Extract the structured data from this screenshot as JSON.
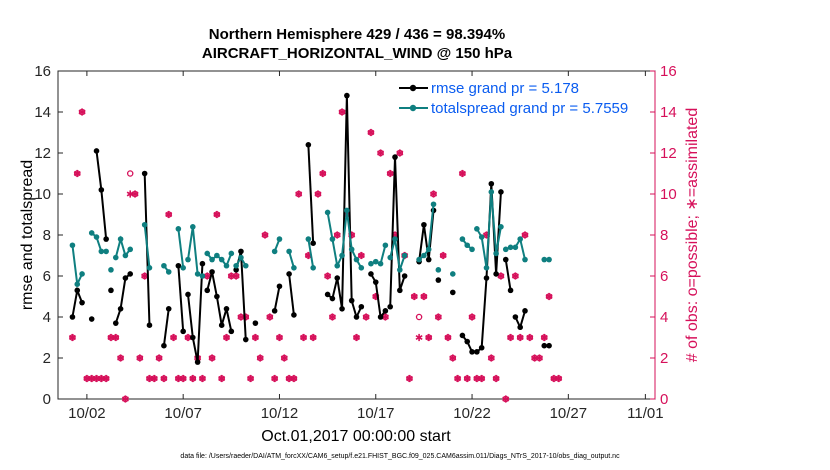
{
  "chart_data": {
    "type": "line",
    "title": "Northern Hemisphere 429 / 436 = 98.394%",
    "subtitle": "AIRCRAFT_HORIZONTAL_WIND @ 150 hPa",
    "xlabel": "Oct.01,2017 00:00:00 start",
    "ylabel_left": "rmse and totalspread",
    "ylabel_right": "# of obs: o=possible; ∗=assimilated",
    "xlim": [
      0.5,
      31.5
    ],
    "ylim_left": [
      0,
      16
    ],
    "ylim_right": [
      0,
      16
    ],
    "x_ticks": [
      {
        "x": 2,
        "label": "10/02"
      },
      {
        "x": 7,
        "label": "10/07"
      },
      {
        "x": 12,
        "label": "10/12"
      },
      {
        "x": 17,
        "label": "10/17"
      },
      {
        "x": 22,
        "label": "10/22"
      },
      {
        "x": 27,
        "label": "10/27"
      },
      {
        "x": 31,
        "label": "11/01"
      }
    ],
    "y_ticks": [
      0,
      2,
      4,
      6,
      8,
      10,
      12,
      14,
      16
    ],
    "colors": {
      "rmse": "#000000",
      "spread": "#0f7f80",
      "obs": "#d6105a",
      "legend_text": "#0a5cf0"
    },
    "series": [
      {
        "name": "rmse grand pr = 5.178",
        "color": "#000000",
        "segments": [
          {
            "x": [
              1.25,
              1.5,
              1.75
            ],
            "y": [
              4.0,
              5.3,
              4.7
            ]
          },
          {
            "x": [
              2.25
            ],
            "y": [
              3.9
            ]
          },
          {
            "x": [
              2.5,
              2.75,
              3.0
            ],
            "y": [
              12.1,
              10.2,
              7.8
            ]
          },
          {
            "x": [
              3.25
            ],
            "y": [
              5.3
            ]
          },
          {
            "x": [
              3.5,
              3.75,
              4.0,
              4.25
            ],
            "y": [
              3.7,
              4.4,
              5.9,
              6.1
            ]
          },
          {
            "x": [
              5.0,
              5.25
            ],
            "y": [
              11.0,
              3.6
            ]
          },
          {
            "x": [
              6.0,
              6.25
            ],
            "y": [
              2.6,
              4.4
            ]
          },
          {
            "x": [
              6.75,
              7.0
            ],
            "y": [
              6.5,
              3.3
            ]
          },
          {
            "x": [
              7.25,
              7.5,
              7.75,
              8.0
            ],
            "y": [
              5.1,
              3.0,
              1.8,
              6.6
            ]
          },
          {
            "x": [
              8.25,
              8.5,
              8.75,
              9.0,
              9.25,
              9.5
            ],
            "y": [
              5.3,
              6.2,
              5.0,
              3.6,
              4.4,
              3.3
            ]
          },
          {
            "x": [
              9.75,
              10.0,
              10.25
            ],
            "y": [
              6.3,
              7.2,
              2.9
            ]
          },
          {
            "x": [
              10.75
            ],
            "y": [
              3.7
            ]
          },
          {
            "x": [
              11.75,
              12.0
            ],
            "y": [
              4.3,
              5.5
            ]
          },
          {
            "x": [
              12.5,
              12.75
            ],
            "y": [
              6.1,
              4.1
            ]
          },
          {
            "x": [
              13.5,
              13.75
            ],
            "y": [
              12.4,
              7.6
            ]
          },
          {
            "x": [
              14.5,
              14.75,
              15.0,
              15.25,
              15.5,
              15.75,
              16.0,
              16.25
            ],
            "y": [
              5.1,
              4.9,
              5.9,
              4.4,
              14.8,
              4.8,
              4.0,
              4.5
            ]
          },
          {
            "x": [
              16.75,
              17.0,
              17.25,
              17.5
            ],
            "y": [
              6.1,
              5.7,
              4.0,
              4.3
            ]
          },
          {
            "x": [
              17.75,
              18.0,
              18.25,
              18.5
            ],
            "y": [
              4.5,
              11.8,
              5.3,
              6.0
            ]
          },
          {
            "x": [
              19.25,
              19.5,
              19.75,
              20.0
            ],
            "y": [
              6.7,
              8.5,
              6.8,
              9.2
            ]
          },
          {
            "x": [
              20.25
            ],
            "y": [
              5.8
            ]
          },
          {
            "x": [
              21.0
            ],
            "y": [
              5.2
            ]
          },
          {
            "x": [
              21.5,
              21.75,
              22.0
            ],
            "y": [
              3.1,
              2.8,
              2.3
            ]
          },
          {
            "x": [
              22.25,
              22.5,
              22.75,
              23.0,
              23.25,
              23.5
            ],
            "y": [
              2.3,
              2.5,
              5.9,
              10.5,
              6.1,
              10.1
            ]
          },
          {
            "x": [
              23.75,
              24.0
            ],
            "y": [
              6.8,
              5.3
            ]
          },
          {
            "x": [
              24.25,
              24.5,
              24.75
            ],
            "y": [
              4.0,
              3.5,
              4.3
            ]
          },
          {
            "x": [
              25.75,
              26.0
            ],
            "y": [
              2.6,
              2.6
            ]
          }
        ]
      },
      {
        "name": "totalspread grand pr = 5.7559",
        "color": "#0f7f80",
        "segments": [
          {
            "x": [
              1.25,
              1.5,
              1.75
            ],
            "y": [
              7.5,
              5.6,
              6.1
            ]
          },
          {
            "x": [
              2.25,
              2.5,
              2.75,
              3.0
            ],
            "y": [
              8.1,
              7.9,
              7.2,
              7.2
            ]
          },
          {
            "x": [
              3.25
            ],
            "y": [
              6.3
            ]
          },
          {
            "x": [
              3.5,
              3.75,
              4.0,
              4.25
            ],
            "y": [
              6.9,
              7.8,
              7.0,
              7.3
            ]
          },
          {
            "x": [
              5.0,
              5.25
            ],
            "y": [
              8.5,
              6.4
            ]
          },
          {
            "x": [
              6.0,
              6.25
            ],
            "y": [
              6.5,
              6.2
            ]
          },
          {
            "x": [
              6.75,
              7.0
            ],
            "y": [
              8.3,
              6.4
            ]
          },
          {
            "x": [
              7.25,
              7.5,
              7.75,
              8.0
            ],
            "y": [
              6.8,
              8.4,
              6.1,
              6.0
            ]
          },
          {
            "x": [
              8.25,
              8.5,
              8.75,
              9.0,
              9.25,
              9.5
            ],
            "y": [
              7.1,
              6.8,
              7.0,
              6.8,
              6.5,
              7.1
            ]
          },
          {
            "x": [
              9.75,
              10.0,
              10.25
            ],
            "y": [
              6.5,
              6.9,
              6.5
            ]
          },
          {
            "x": [
              11.75,
              12.0
            ],
            "y": [
              7.2,
              7.8
            ]
          },
          {
            "x": [
              12.5,
              12.75
            ],
            "y": [
              7.2,
              6.4
            ]
          },
          {
            "x": [
              13.5,
              13.75
            ],
            "y": [
              7.8,
              6.4
            ]
          },
          {
            "x": [
              14.5,
              14.75,
              15.0,
              15.25,
              15.5,
              15.75,
              16.0,
              16.25
            ],
            "y": [
              9.1,
              7.8,
              6.5,
              7.0,
              9.2,
              7.3,
              6.8,
              6.4
            ]
          },
          {
            "x": [
              16.75,
              17.0,
              17.25,
              17.5
            ],
            "y": [
              6.6,
              6.7,
              6.6,
              7.5
            ]
          },
          {
            "x": [
              17.75,
              18.0,
              18.25,
              18.5
            ],
            "y": [
              6.9,
              7.8,
              6.3,
              7.0
            ]
          },
          {
            "x": [
              19.25,
              19.5,
              19.75,
              20.0
            ],
            "y": [
              6.8,
              7.0,
              7.3,
              9.5
            ]
          },
          {
            "x": [
              20.25
            ],
            "y": [
              6.3
            ]
          },
          {
            "x": [
              21.0
            ],
            "y": [
              6.1
            ]
          },
          {
            "x": [
              21.5,
              21.75,
              22.0
            ],
            "y": [
              7.8,
              7.5,
              7.3
            ]
          },
          {
            "x": [
              22.25,
              22.5,
              22.75,
              23.0,
              23.25,
              23.5
            ],
            "y": [
              8.3,
              7.9,
              6.4,
              10.1,
              7.1,
              8.4
            ]
          },
          {
            "x": [
              23.75,
              24.0
            ],
            "y": [
              7.3,
              7.4
            ]
          },
          {
            "x": [
              24.25,
              24.5,
              24.75
            ],
            "y": [
              7.4,
              7.8,
              6.8
            ]
          },
          {
            "x": [
              25.75,
              26.0
            ],
            "y": [
              6.8,
              6.8
            ]
          }
        ]
      }
    ],
    "obs_possible": {
      "marker": "o",
      "x": [
        1.25,
        1.5,
        1.75,
        2.0,
        2.25,
        2.5,
        2.75,
        3.0,
        3.25,
        3.5,
        3.75,
        4.0,
        4.25,
        4.5,
        4.75,
        5.0,
        5.25,
        5.5,
        5.75,
        6.0,
        6.25,
        6.5,
        6.75,
        7.0,
        7.25,
        7.5,
        7.75,
        8.0,
        8.25,
        8.5,
        8.75,
        9.0,
        9.25,
        9.5,
        9.75,
        10.0,
        10.25,
        10.5,
        10.75,
        11.0,
        11.25,
        11.5,
        11.75,
        12.0,
        12.25,
        12.5,
        12.75,
        13.0,
        13.25,
        13.5,
        13.75,
        14.0,
        14.25,
        14.5,
        14.75,
        15.0,
        15.25,
        15.5,
        15.75,
        16.0,
        16.25,
        16.5,
        16.75,
        17.0,
        17.25,
        17.5,
        17.75,
        18.0,
        18.25,
        18.5,
        18.75,
        19.0,
        19.25,
        19.5,
        19.75,
        20.0,
        20.25,
        20.5,
        20.75,
        21.0,
        21.25,
        21.5,
        21.75,
        22.0,
        22.25,
        22.5,
        22.75,
        23.0,
        23.25,
        23.5,
        23.75,
        24.0,
        24.25,
        24.5,
        24.75,
        25.0,
        25.25,
        25.5,
        25.75,
        26.0,
        26.25,
        26.5
      ],
      "y": [
        3,
        11,
        14,
        1,
        1,
        1,
        1,
        1,
        3,
        3,
        2,
        0,
        11,
        10,
        2,
        6,
        1,
        1,
        2,
        1,
        9,
        3,
        1,
        1,
        3,
        1,
        2,
        1,
        6,
        2,
        9,
        1,
        3,
        6,
        6,
        4,
        4,
        1,
        3,
        2,
        8,
        4,
        1,
        3,
        2,
        1,
        1,
        10,
        3,
        7,
        3,
        10,
        11,
        6,
        4,
        8,
        14,
        9,
        8,
        3,
        7,
        4,
        13,
        5,
        12,
        4,
        11,
        8,
        12,
        7,
        1,
        5,
        4,
        5,
        3,
        10,
        4,
        7,
        3,
        2,
        1,
        11,
        1,
        4,
        1,
        1,
        8,
        2,
        1,
        6,
        0,
        3,
        6,
        3,
        8,
        3,
        2,
        2,
        3,
        5,
        1,
        1
      ]
    },
    "obs_assimilated": {
      "marker": "*",
      "x": [
        1.25,
        1.5,
        1.75,
        2.0,
        2.25,
        2.5,
        2.75,
        3.0,
        3.25,
        3.5,
        3.75,
        4.0,
        4.25,
        4.5,
        4.75,
        5.0,
        5.25,
        5.5,
        5.75,
        6.0,
        6.25,
        6.5,
        6.75,
        7.0,
        7.25,
        7.5,
        7.75,
        8.0,
        8.25,
        8.5,
        8.75,
        9.0,
        9.25,
        9.5,
        9.75,
        10.0,
        10.25,
        10.5,
        10.75,
        11.0,
        11.25,
        11.5,
        11.75,
        12.0,
        12.25,
        12.5,
        12.75,
        13.0,
        13.25,
        13.5,
        13.75,
        14.0,
        14.25,
        14.5,
        14.75,
        15.0,
        15.25,
        15.5,
        15.75,
        16.0,
        16.25,
        16.5,
        16.75,
        17.0,
        17.25,
        17.5,
        17.75,
        18.0,
        18.25,
        18.5,
        18.75,
        19.0,
        19.25,
        19.5,
        19.75,
        20.0,
        20.25,
        20.5,
        20.75,
        21.0,
        21.25,
        21.5,
        21.75,
        22.0,
        22.25,
        22.5,
        22.75,
        23.0,
        23.25,
        23.5,
        23.75,
        24.0,
        24.25,
        24.5,
        24.75,
        25.0,
        25.25,
        25.5,
        25.75,
        26.0,
        26.25,
        26.5
      ],
      "y": [
        3,
        11,
        14,
        1,
        1,
        1,
        1,
        1,
        3,
        3,
        2,
        0,
        10,
        10,
        2,
        6,
        1,
        1,
        2,
        1,
        9,
        3,
        1,
        1,
        3,
        1,
        2,
        1,
        6,
        2,
        9,
        1,
        3,
        6,
        6,
        4,
        4,
        1,
        3,
        2,
        8,
        4,
        1,
        3,
        2,
        1,
        1,
        10,
        3,
        7,
        3,
        10,
        11,
        6,
        4,
        8,
        14,
        9,
        8,
        3,
        7,
        4,
        13,
        5,
        12,
        4,
        11,
        8,
        12,
        7,
        1,
        5,
        3,
        5,
        3,
        10,
        4,
        7,
        3,
        2,
        1,
        11,
        1,
        4,
        1,
        1,
        8,
        2,
        1,
        6,
        0,
        3,
        6,
        3,
        8,
        3,
        2,
        2,
        3,
        5,
        1,
        1
      ]
    },
    "legend": {
      "placement": "top-right",
      "entries": [
        "rmse grand pr = 5.178",
        "totalspread grand pr = 5.7559"
      ]
    },
    "grid": false
  },
  "footer": "data file: /Users/raeder/DAI/ATM_forcXX/CAM6_setup/f.e21.FHIST_BGC.f09_025.CAM6assim.011/Diags_NTrS_2017-10/obs_diag_output.nc"
}
